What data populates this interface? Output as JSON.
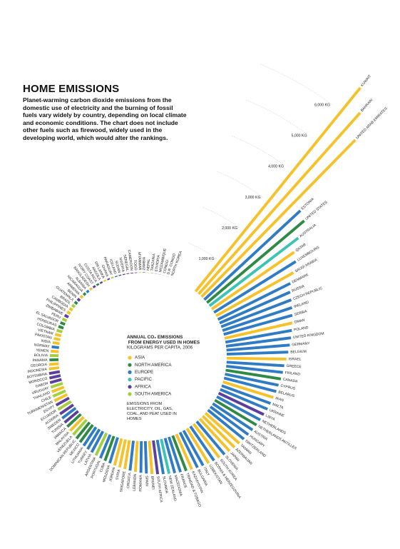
{
  "chart_data": {
    "type": "radial-bar",
    "title": "HOME EMISSIONS",
    "description": "Planet-warming carbon dioxide emissions from the domestic use of electricity and the burning of fossil fuels vary widely by country, depending on local climate and economic conditions. The chart does not include other fuels such as firewood, widely used in the developing world, which would alter the rankings.",
    "legend_title": "ANNUAL CO₂ EMISSIONS FROM ENERGY USED IN HOMES",
    "legend_subtitle": "KILOGRAMS PER CAPITA, 2006",
    "note": "EMISSIONS FROM ELECTRICITY, OIL, GAS, COAL, AND PEAT USED IN HOMES",
    "legend": [
      {
        "name": "ASIA",
        "color": "#f5c22b"
      },
      {
        "name": "NORTH AMERICA",
        "color": "#2f8a45"
      },
      {
        "name": "EUROPE",
        "color": "#2f7cc4"
      },
      {
        "name": "PACIFIC",
        "color": "#3cc3b3"
      },
      {
        "name": "AFRICA",
        "color": "#5a3f9c"
      },
      {
        "name": "SOUTH AMERICA",
        "color": "#a3cf3f"
      }
    ],
    "ylim": [
      0,
      7000
    ],
    "yticks": [
      {
        "value": 1000,
        "label": "1,000 KG"
      },
      {
        "value": 2000,
        "label": "2,000 KG"
      },
      {
        "value": 3000,
        "label": "3,000 KG"
      },
      {
        "value": 4000,
        "label": "4,000 KG"
      },
      {
        "value": 5000,
        "label": "5,000 KG"
      },
      {
        "value": 6000,
        "label": "6,000 KG"
      }
    ],
    "categories": [
      "KUWAIT",
      "BAHRAIN",
      "UNITED ARAB EMIRATES",
      "ESTONIA",
      "UNITED STATES",
      "AUSTRALIA",
      "QATAR",
      "LUXEMBOURG",
      "SAUDI ARABIA",
      "DENMARK",
      "RUSSIA",
      "CZECH REPUBLIC",
      "IRELAND",
      "SERBIA",
      "OMAN",
      "POLAND",
      "UNITED KINGDOM",
      "GERMANY",
      "BELGIUM",
      "ISRAEL",
      "GREECE",
      "FINLAND",
      "CANADA",
      "CYPRUS",
      "BELARUS",
      "IRAN",
      "MALTA",
      "UKRAINE",
      "LIBYA",
      "NETHERLANDS",
      "NETHERLANDS ANTILLES",
      "AUSTRIA",
      "HUNGARY",
      "SWITZERLAND",
      "TAIWAN",
      "AZERBAIJAN",
      "JAPAN",
      "SLOVENIA",
      "SOUTH KOREA",
      "BOSNIA & HERZEGOVINA",
      "UZBEKISTAN",
      "ITALY",
      "BULGARIA",
      "KAZAKHSTAN",
      "TRINIDAD & TOBAGO",
      "FRANCE",
      "MACEDONIA",
      "NEW ZEALAND",
      "SLOVAKIA",
      "SOUTH AFRICA",
      "BRUNEI",
      "SPAIN",
      "ROMANIA",
      "LEBANON",
      "CROATIA",
      "SINGAPORE",
      "SYRIA",
      "JORDAN",
      "MOLDOVA",
      "CUBA",
      "PORTUGAL",
      "ARGENTINA",
      "LATVIA",
      "TURKEY",
      "LITHUANIA",
      "MEXICO",
      "DOMINICAN REPUBLIC",
      "VENEZUELA",
      "MALAYSIA",
      "JAMAICA",
      "TUNISIA",
      "SWEDEN",
      "ALGERIA",
      "ECUADOR",
      "EGYPT",
      "TURKMENISTAN",
      "CHILE",
      "THAILAND",
      "URUGUAY",
      "GABON",
      "MOROCCO",
      "BOTSWANA",
      "INDONESIA",
      "GEORGIA",
      "PANAMA",
      "BOLIVIA",
      "YEMEN",
      "NORWAY",
      "INDIA",
      "PAKISTAN",
      "VIETNAM",
      "COLOMBIA",
      "HONDURAS",
      "EL SALVADOR",
      "PERU",
      "ZIMBABWE",
      "PHILIPPINES",
      "CAMBODIA",
      "BRAZIL",
      "GUATEMALA",
      "BENIN",
      "ARMENIA",
      "NICARAGUA",
      "ALBANIA",
      "BANGLADESH",
      "IVORY COAST",
      "COSTA RICA",
      "ANGOLA",
      "SRI LANKA",
      "GHANA",
      "PARAGUAY",
      "ICELAND",
      "SUDAN",
      "NIGERIA",
      "SENEGAL",
      "CAMEROON",
      "TOGO",
      "MYANMAR",
      "ZAMBIA",
      "NEPAL",
      "TANZANIA",
      "ETHIOPIA",
      "MOZAMBIQUE",
      "CONGO",
      "D.R. CONGO",
      "NORTH KOREA"
    ],
    "values": [
      6800,
      6300,
      5700,
      3400,
      3300,
      2900,
      2600,
      2500,
      2300,
      2100,
      2000,
      1950,
      1900,
      1850,
      1800,
      1750,
      1700,
      1650,
      1600,
      1550,
      1500,
      1480,
      1450,
      1420,
      1400,
      1370,
      1350,
      1330,
      1300,
      1280,
      1260,
      1240,
      1220,
      1200,
      1180,
      1160,
      1140,
      1120,
      1100,
      1080,
      1060,
      1040,
      1020,
      1000,
      980,
      960,
      940,
      920,
      900,
      880,
      860,
      840,
      820,
      800,
      780,
      760,
      740,
      720,
      700,
      680,
      660,
      640,
      620,
      600,
      580,
      560,
      540,
      520,
      500,
      480,
      460,
      440,
      420,
      400,
      385,
      370,
      355,
      340,
      325,
      310,
      295,
      280,
      265,
      250,
      235,
      220,
      205,
      190,
      180,
      170,
      160,
      150,
      140,
      130,
      120,
      110,
      100,
      95,
      90,
      85,
      80,
      75,
      70,
      65,
      60,
      55,
      50,
      45,
      40,
      36,
      32,
      28,
      25,
      22,
      19,
      16,
      14,
      12,
      10,
      8,
      6,
      5,
      4,
      3,
      2,
      1
    ],
    "regions": [
      "ASIA",
      "ASIA",
      "ASIA",
      "EUROPE",
      "NORTH AMERICA",
      "PACIFIC",
      "ASIA",
      "EUROPE",
      "ASIA",
      "EUROPE",
      "EUROPE",
      "EUROPE",
      "EUROPE",
      "EUROPE",
      "ASIA",
      "EUROPE",
      "EUROPE",
      "EUROPE",
      "EUROPE",
      "ASIA",
      "EUROPE",
      "EUROPE",
      "NORTH AMERICA",
      "EUROPE",
      "EUROPE",
      "ASIA",
      "EUROPE",
      "EUROPE",
      "AFRICA",
      "EUROPE",
      "NORTH AMERICA",
      "EUROPE",
      "EUROPE",
      "EUROPE",
      "ASIA",
      "ASIA",
      "ASIA",
      "EUROPE",
      "ASIA",
      "EUROPE",
      "ASIA",
      "EUROPE",
      "EUROPE",
      "ASIA",
      "NORTH AMERICA",
      "EUROPE",
      "EUROPE",
      "PACIFIC",
      "EUROPE",
      "AFRICA",
      "ASIA",
      "EUROPE",
      "EUROPE",
      "ASIA",
      "EUROPE",
      "ASIA",
      "ASIA",
      "ASIA",
      "EUROPE",
      "NORTH AMERICA",
      "EUROPE",
      "SOUTH AMERICA",
      "EUROPE",
      "EUROPE",
      "EUROPE",
      "NORTH AMERICA",
      "NORTH AMERICA",
      "SOUTH AMERICA",
      "ASIA",
      "NORTH AMERICA",
      "AFRICA",
      "EUROPE",
      "AFRICA",
      "SOUTH AMERICA",
      "AFRICA",
      "ASIA",
      "SOUTH AMERICA",
      "ASIA",
      "SOUTH AMERICA",
      "AFRICA",
      "AFRICA",
      "AFRICA",
      "ASIA",
      "ASIA",
      "NORTH AMERICA",
      "SOUTH AMERICA",
      "ASIA",
      "EUROPE",
      "ASIA",
      "ASIA",
      "ASIA",
      "SOUTH AMERICA",
      "NORTH AMERICA",
      "NORTH AMERICA",
      "SOUTH AMERICA",
      "AFRICA",
      "ASIA",
      "ASIA",
      "SOUTH AMERICA",
      "NORTH AMERICA",
      "AFRICA",
      "ASIA",
      "NORTH AMERICA",
      "EUROPE",
      "ASIA",
      "AFRICA",
      "NORTH AMERICA",
      "AFRICA",
      "ASIA",
      "AFRICA",
      "SOUTH AMERICA",
      "EUROPE",
      "AFRICA",
      "AFRICA",
      "AFRICA",
      "AFRICA",
      "AFRICA",
      "ASIA",
      "AFRICA",
      "ASIA",
      "AFRICA",
      "AFRICA",
      "AFRICA",
      "AFRICA",
      "AFRICA",
      "ASIA"
    ]
  }
}
